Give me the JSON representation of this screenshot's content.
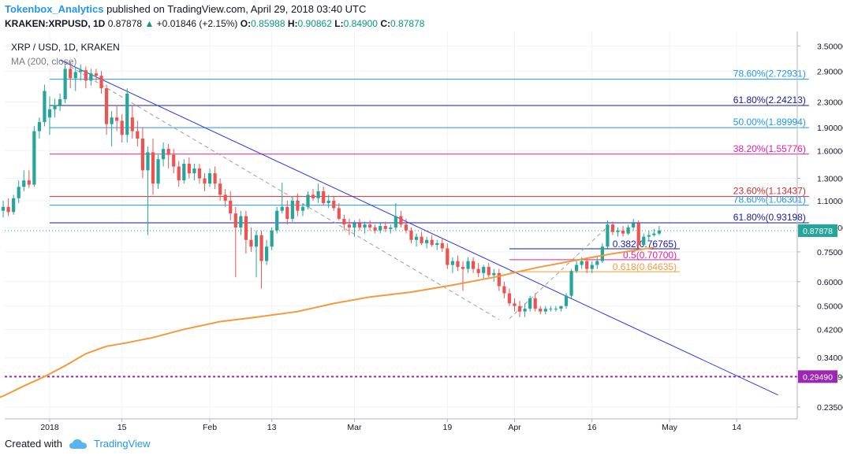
{
  "header": {
    "author": "Tokenbox_Analytics",
    "published": "published on TradingView.com, April 29, 2018 03:40 UTC",
    "symbol": "KRAKEN:XRPUSD, 1D",
    "last": "0.87878",
    "change": "+0.01846 (+2.15%)",
    "o_label": "O:",
    "o_value": "0.85988",
    "h_label": "H:",
    "h_value": "0.90862",
    "l_label": "L:",
    "l_value": "0.84900",
    "c_label": "C:",
    "c_value": "0.87878"
  },
  "legend": {
    "title": "XRP / USD, 1D, KRAKEN",
    "indicator": "MA (200, close)"
  },
  "footer": {
    "created_with": "Created with",
    "brand": "TradingView"
  },
  "colors": {
    "up": "#26a69a",
    "down": "#ef5350",
    "ma": "#f59a3a",
    "trendline": "#2b37e6",
    "channel": "#9e9e9e",
    "support": "#9c27b0",
    "price_label": "#26a69a"
  },
  "chart_data": {
    "type": "candlestick",
    "title": "XRP / USD, 1D, KRAKEN",
    "y_scale": "log",
    "ylim": [
      0.215,
      3.9
    ],
    "y_ticks": [
      "3.50000",
      "2.90000",
      "2.30000",
      "1.90000",
      "1.60000",
      "1.30000",
      "1.10000",
      "0.90000",
      "0.75000",
      "0.60000",
      "0.50000",
      "0.42000",
      "0.34000",
      "0.29490",
      "0.23500"
    ],
    "y_tick_values": [
      3.5,
      2.9,
      2.3,
      1.9,
      1.6,
      1.3,
      1.1,
      0.9,
      0.75,
      0.6,
      0.5,
      0.42,
      0.34,
      0.2949,
      0.235
    ],
    "x_ticks": [
      {
        "label": "2018",
        "date": "2018-01-01"
      },
      {
        "label": "15",
        "date": "2018-01-15"
      },
      {
        "label": "Feb",
        "date": "2018-02-01"
      },
      {
        "label": "13",
        "date": "2018-02-13"
      },
      {
        "label": "Mar",
        "date": "2018-03-01"
      },
      {
        "label": "19",
        "date": "2018-03-19"
      },
      {
        "label": "Apr",
        "date": "2018-04-01"
      },
      {
        "label": "16",
        "date": "2018-04-16"
      },
      {
        "label": "May",
        "date": "2018-05-01"
      },
      {
        "label": "14",
        "date": "2018-05-14"
      }
    ],
    "last_price": {
      "label": "0.87878",
      "value": 0.87878
    },
    "support_level": {
      "label": "0.29490",
      "value": 0.2949
    },
    "fib_upper": [
      {
        "label": "78.60%(2.72931)",
        "value": 2.72931,
        "color": "#2196f3"
      },
      {
        "label": "61.80%(2.24213)",
        "value": 2.24213,
        "color": "#1a1aa6"
      },
      {
        "label": "50.00%(1.89994)",
        "value": 1.89994,
        "color": "#2196f3"
      },
      {
        "label": "38.20%(1.55776)",
        "value": 1.55776,
        "color": "#e91e9c"
      },
      {
        "label": "23.60%(1.13437)",
        "value": 1.13437,
        "color": "#d32f2f"
      },
      {
        "label": "78.60%(1.06301)",
        "value": 1.06301,
        "color": "#2196f3"
      },
      {
        "label": "61.80%(0.93198)",
        "value": 0.93198,
        "color": "#1a1aa6"
      }
    ],
    "fib_lower": [
      {
        "label": "0.382(0.76765)",
        "value": 0.76765,
        "color": "#1a1aa6"
      },
      {
        "label": "0.5(0.70700)",
        "value": 0.707,
        "color": "#e91e9c"
      },
      {
        "label": "0.618(0.64635)",
        "value": 0.64635,
        "color": "#f59a3a"
      }
    ],
    "series": [
      {
        "name": "XRP / USD",
        "type": "candlestick",
        "start_date": "2017-12-22",
        "ohlc": [
          [
            0.95,
            1.07,
            0.88,
            1.02
          ],
          [
            1.02,
            1.1,
            0.97,
            1.05
          ],
          [
            1.05,
            1.12,
            0.98,
            1.01
          ],
          [
            1.01,
            1.15,
            0.99,
            1.12
          ],
          [
            1.12,
            1.28,
            1.08,
            1.22
          ],
          [
            1.22,
            1.38,
            1.18,
            1.28
          ],
          [
            1.28,
            1.38,
            1.21,
            1.24
          ],
          [
            1.24,
            1.92,
            1.22,
            1.85
          ],
          [
            1.85,
            2.05,
            1.75,
            1.98
          ],
          [
            1.98,
            2.62,
            1.92,
            2.5
          ],
          [
            2.05,
            2.4,
            1.8,
            2.18
          ],
          [
            2.18,
            2.36,
            2.05,
            2.25
          ],
          [
            2.25,
            2.45,
            2.15,
            2.35
          ],
          [
            2.35,
            3.05,
            2.28,
            2.95
          ],
          [
            2.95,
            3.1,
            2.55,
            2.75
          ],
          [
            2.75,
            3.0,
            2.5,
            2.88
          ],
          [
            2.88,
            3.05,
            2.7,
            2.92
          ],
          [
            2.92,
            3.0,
            2.55,
            2.7
          ],
          [
            2.7,
            2.95,
            2.6,
            2.85
          ],
          [
            2.85,
            2.95,
            2.7,
            2.8
          ],
          [
            2.8,
            2.9,
            2.45,
            2.55
          ],
          [
            2.55,
            2.62,
            1.8,
            1.95
          ],
          [
            1.95,
            2.15,
            1.65,
            2.05
          ],
          [
            2.05,
            2.25,
            1.85,
            2.0
          ],
          [
            2.0,
            2.1,
            1.7,
            1.8
          ],
          [
            1.8,
            2.55,
            1.7,
            2.45
          ],
          [
            2.05,
            2.25,
            1.75,
            1.85
          ],
          [
            1.85,
            2.0,
            1.65,
            1.75
          ],
          [
            1.75,
            1.9,
            1.3,
            1.38
          ],
          [
            1.38,
            1.65,
            0.85,
            1.58
          ],
          [
            1.58,
            1.75,
            1.15,
            1.25
          ],
          [
            1.25,
            1.55,
            1.2,
            1.5
          ],
          [
            1.5,
            1.7,
            1.42,
            1.62
          ],
          [
            1.62,
            1.68,
            1.4,
            1.55
          ],
          [
            1.55,
            1.62,
            1.35,
            1.42
          ],
          [
            1.42,
            1.48,
            1.22,
            1.28
          ],
          [
            1.28,
            1.5,
            1.25,
            1.45
          ],
          [
            1.45,
            1.52,
            1.3,
            1.35
          ],
          [
            1.35,
            1.45,
            1.28,
            1.4
          ],
          [
            1.4,
            1.45,
            1.25,
            1.3
          ],
          [
            1.3,
            1.35,
            1.18,
            1.25
          ],
          [
            1.25,
            1.4,
            1.22,
            1.35
          ],
          [
            1.35,
            1.42,
            1.2,
            1.25
          ],
          [
            1.25,
            1.3,
            1.1,
            1.15
          ],
          [
            1.15,
            1.2,
            1.05,
            1.1
          ],
          [
            1.1,
            1.18,
            0.95,
            1.0
          ],
          [
            1.0,
            1.05,
            0.62,
            0.9
          ],
          [
            0.9,
            1.02,
            0.85,
            0.98
          ],
          [
            0.98,
            1.02,
            0.74,
            0.82
          ],
          [
            0.82,
            0.9,
            0.75,
            0.78
          ],
          [
            0.78,
            0.88,
            0.62,
            0.85
          ],
          [
            0.85,
            0.88,
            0.57,
            0.7
          ],
          [
            0.7,
            0.82,
            0.68,
            0.78
          ],
          [
            0.78,
            0.9,
            0.76,
            0.88
          ],
          [
            0.88,
            1.05,
            0.86,
            1.02
          ],
          [
            1.02,
            1.26,
            1.0,
            1.05
          ],
          [
            1.05,
            1.1,
            0.92,
            0.96
          ],
          [
            0.96,
            1.12,
            0.94,
            1.1
          ],
          [
            1.1,
            1.16,
            0.98,
            1.02
          ],
          [
            1.02,
            1.08,
            0.98,
            1.05
          ],
          [
            1.05,
            1.18,
            1.03,
            1.15
          ],
          [
            1.15,
            1.2,
            1.1,
            1.12
          ],
          [
            1.12,
            1.25,
            1.08,
            1.18
          ],
          [
            1.18,
            1.22,
            1.06,
            1.08
          ],
          [
            1.08,
            1.15,
            1.04,
            1.1
          ],
          [
            1.1,
            1.14,
            1.02,
            1.04
          ],
          [
            1.04,
            1.08,
            0.95,
            0.96
          ],
          [
            0.96,
            0.99,
            0.88,
            0.92
          ],
          [
            0.92,
            0.96,
            0.85,
            0.9
          ],
          [
            0.9,
            0.95,
            0.84,
            0.93
          ],
          [
            0.93,
            0.96,
            0.88,
            0.9
          ],
          [
            0.9,
            0.94,
            0.86,
            0.92
          ],
          [
            0.92,
            0.95,
            0.88,
            0.9
          ],
          [
            0.9,
            0.92,
            0.86,
            0.88
          ],
          [
            0.88,
            0.93,
            0.86,
            0.91
          ],
          [
            0.91,
            0.94,
            0.87,
            0.89
          ],
          [
            0.89,
            0.92,
            0.86,
            0.9
          ],
          [
            0.9,
            1.08,
            0.88,
            0.98
          ],
          [
            0.98,
            1.02,
            0.9,
            0.92
          ],
          [
            0.92,
            0.96,
            0.86,
            0.88
          ],
          [
            0.88,
            0.9,
            0.8,
            0.82
          ],
          [
            0.82,
            0.86,
            0.78,
            0.84
          ],
          [
            0.84,
            0.87,
            0.79,
            0.8
          ],
          [
            0.8,
            0.84,
            0.77,
            0.82
          ],
          [
            0.82,
            0.85,
            0.78,
            0.79
          ],
          [
            0.79,
            0.82,
            0.76,
            0.8
          ],
          [
            0.8,
            0.83,
            0.75,
            0.77
          ],
          [
            0.77,
            0.8,
            0.66,
            0.68
          ],
          [
            0.68,
            0.72,
            0.64,
            0.7
          ],
          [
            0.7,
            0.73,
            0.65,
            0.67
          ],
          [
            0.67,
            0.7,
            0.56,
            0.66
          ],
          [
            0.66,
            0.72,
            0.64,
            0.7
          ],
          [
            0.7,
            0.72,
            0.64,
            0.66
          ],
          [
            0.66,
            0.69,
            0.62,
            0.64
          ],
          [
            0.64,
            0.68,
            0.61,
            0.67
          ],
          [
            0.67,
            0.69,
            0.62,
            0.63
          ],
          [
            0.63,
            0.66,
            0.6,
            0.64
          ],
          [
            0.64,
            0.66,
            0.56,
            0.58
          ],
          [
            0.58,
            0.6,
            0.53,
            0.55
          ],
          [
            0.55,
            0.57,
            0.5,
            0.51
          ],
          [
            0.51,
            0.53,
            0.48,
            0.5
          ],
          [
            0.5,
            0.52,
            0.46,
            0.48
          ],
          [
            0.48,
            0.51,
            0.46,
            0.49
          ],
          [
            0.49,
            0.54,
            0.48,
            0.53
          ],
          [
            0.53,
            0.55,
            0.48,
            0.49
          ],
          [
            0.49,
            0.5,
            0.47,
            0.48
          ],
          [
            0.48,
            0.5,
            0.47,
            0.49
          ],
          [
            0.49,
            0.5,
            0.48,
            0.49
          ],
          [
            0.49,
            0.5,
            0.48,
            0.49
          ],
          [
            0.49,
            0.5,
            0.48,
            0.5
          ],
          [
            0.5,
            0.55,
            0.49,
            0.54
          ],
          [
            0.54,
            0.66,
            0.53,
            0.65
          ],
          [
            0.65,
            0.7,
            0.64,
            0.68
          ],
          [
            0.68,
            0.72,
            0.66,
            0.7
          ],
          [
            0.7,
            0.72,
            0.64,
            0.66
          ],
          [
            0.66,
            0.7,
            0.64,
            0.68
          ],
          [
            0.68,
            0.72,
            0.66,
            0.7
          ],
          [
            0.7,
            0.8,
            0.69,
            0.78
          ],
          [
            0.78,
            0.95,
            0.77,
            0.92
          ],
          [
            0.92,
            0.94,
            0.85,
            0.87
          ],
          [
            0.87,
            0.9,
            0.84,
            0.88
          ],
          [
            0.88,
            0.91,
            0.84,
            0.86
          ],
          [
            0.86,
            0.92,
            0.85,
            0.9
          ],
          [
            0.9,
            0.96,
            0.88,
            0.93
          ],
          [
            0.93,
            0.95,
            0.77,
            0.79
          ],
          [
            0.79,
            0.86,
            0.78,
            0.84
          ],
          [
            0.84,
            0.88,
            0.81,
            0.85
          ],
          [
            0.85,
            0.89,
            0.84,
            0.86
          ],
          [
            0.86,
            0.91,
            0.85,
            0.88
          ]
        ]
      },
      {
        "name": "MA (200, close)",
        "type": "line",
        "points": [
          [
            "2017-12-20",
            0.245
          ],
          [
            "2017-12-23",
            0.255
          ],
          [
            "2017-12-27",
            0.275
          ],
          [
            "2017-12-31",
            0.295
          ],
          [
            "2018-01-04",
            0.32
          ],
          [
            "2018-01-08",
            0.35
          ],
          [
            "2018-01-12",
            0.37
          ],
          [
            "2018-01-16",
            0.38
          ],
          [
            "2018-01-21",
            0.395
          ],
          [
            "2018-01-27",
            0.42
          ],
          [
            "2018-02-03",
            0.445
          ],
          [
            "2018-02-10",
            0.46
          ],
          [
            "2018-02-18",
            0.48
          ],
          [
            "2018-02-25",
            0.51
          ],
          [
            "2018-03-04",
            0.535
          ],
          [
            "2018-03-12",
            0.555
          ],
          [
            "2018-03-20",
            0.585
          ],
          [
            "2018-03-28",
            0.62
          ],
          [
            "2018-04-05",
            0.665
          ],
          [
            "2018-04-12",
            0.7
          ],
          [
            "2018-04-20",
            0.74
          ],
          [
            "2018-04-28",
            0.775
          ]
        ]
      }
    ],
    "trendline": {
      "points": [
        [
          "2018-01-03",
          3.15
        ],
        [
          "2018-05-22",
          0.257
        ]
      ]
    },
    "channel_lines": [
      {
        "points": [
          [
            "2018-01-05",
            3.0
          ],
          [
            "2018-03-29",
            0.452
          ]
        ]
      },
      {
        "points": [
          [
            "2018-03-31",
            0.455
          ],
          [
            "2018-04-19",
            0.905
          ]
        ]
      }
    ]
  }
}
